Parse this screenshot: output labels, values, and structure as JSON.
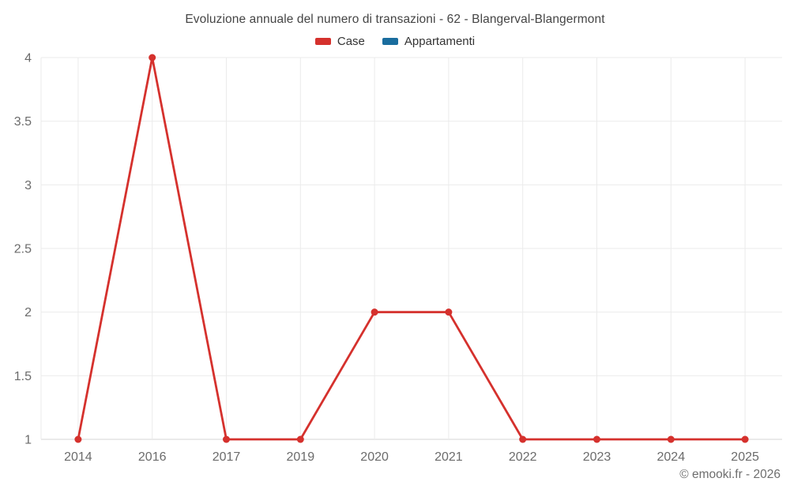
{
  "chart_data": {
    "type": "line",
    "title": "Evoluzione annuale del numero di transazioni - 62 - Blangerval-Blangermont",
    "categories": [
      "2014",
      "2016",
      "2017",
      "2019",
      "2020",
      "2021",
      "2022",
      "2023",
      "2024",
      "2025"
    ],
    "series": [
      {
        "name": "Case",
        "color": "#d5312d",
        "values": [
          1,
          4,
          1,
          1,
          2,
          2,
          1,
          1,
          1,
          1
        ]
      },
      {
        "name": "Appartamenti",
        "color": "#1a6d9e",
        "values": []
      }
    ],
    "xlabel": "",
    "ylabel": "",
    "ylim": [
      1,
      4
    ],
    "yticks": [
      1,
      1.5,
      2,
      2.5,
      3,
      3.5,
      4
    ],
    "ytick_labels": [
      "1",
      "1.5",
      "2",
      "2.5",
      "3",
      "3.5",
      "4"
    ],
    "grid": true,
    "legend_position": "top",
    "marker": "circle"
  },
  "footer": {
    "copyright": "© emooki.fr - 2026"
  }
}
